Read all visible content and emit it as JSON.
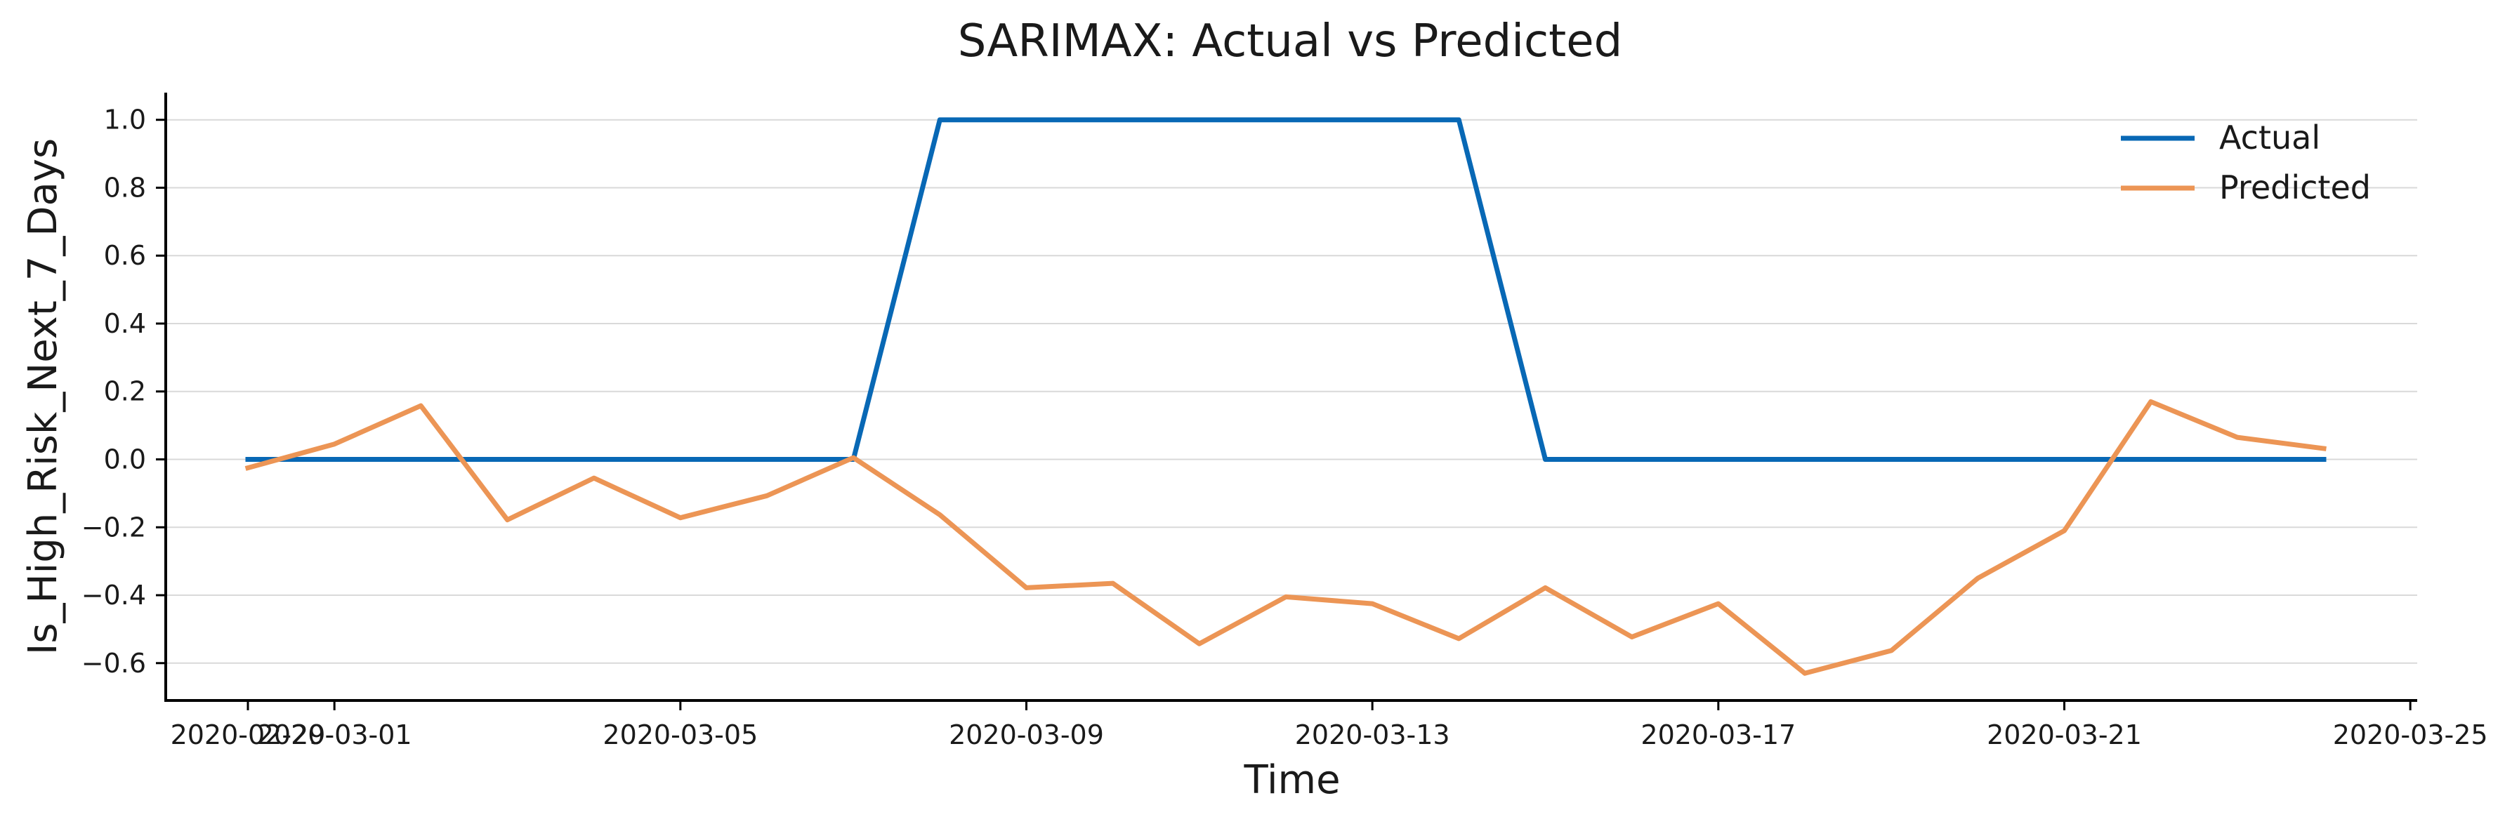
{
  "chart_data": {
    "type": "line",
    "title": "SARIMAX: Actual vs Predicted",
    "xlabel": "Time",
    "ylabel": "Is_High_Risk_Next_7_Days",
    "x": [
      "2020-02-29",
      "2020-03-01",
      "2020-03-02",
      "2020-03-03",
      "2020-03-04",
      "2020-03-05",
      "2020-03-06",
      "2020-03-07",
      "2020-03-08",
      "2020-03-09",
      "2020-03-10",
      "2020-03-11",
      "2020-03-12",
      "2020-03-13",
      "2020-03-14",
      "2020-03-15",
      "2020-03-16",
      "2020-03-17",
      "2020-03-18",
      "2020-03-19",
      "2020-03-20",
      "2020-03-21",
      "2020-03-22",
      "2020-03-23",
      "2020-03-24"
    ],
    "series": [
      {
        "name": "Actual",
        "color": "#0868b5",
        "values": [
          0,
          0,
          0,
          0,
          0,
          0,
          0,
          0,
          1,
          1,
          1,
          1,
          1,
          1,
          1,
          0,
          0,
          0,
          0,
          0,
          0,
          0,
          0,
          0,
          0
        ]
      },
      {
        "name": "Predicted",
        "color": "#ec9555",
        "values": [
          -0.025,
          0.045,
          0.158,
          -0.178,
          -0.055,
          -0.172,
          -0.107,
          0.005,
          -0.163,
          -0.378,
          -0.365,
          -0.543,
          -0.405,
          -0.425,
          -0.528,
          -0.378,
          -0.523,
          -0.425,
          -0.63,
          -0.563,
          -0.35,
          -0.21,
          0.17,
          0.065,
          0.032
        ]
      }
    ],
    "x_tick_labels": [
      "2020-02-29",
      "2020-03-01",
      "2020-03-05",
      "2020-03-09",
      "2020-03-13",
      "2020-03-17",
      "2020-03-21",
      "2020-03-25"
    ],
    "y_ticks": [
      -0.6,
      -0.4,
      -0.2,
      0.0,
      0.2,
      0.4,
      0.6,
      0.8,
      1.0
    ],
    "y_tick_labels": [
      "−0.6",
      "−0.4",
      "−0.2",
      "0.0",
      "0.2",
      "0.4",
      "0.6",
      "0.8",
      "1.0"
    ],
    "xlim": [
      "2020-02-28",
      "2020-03-25"
    ],
    "ylim": [
      -0.71,
      1.08
    ],
    "grid": "horizontal",
    "legend": "top-right"
  }
}
